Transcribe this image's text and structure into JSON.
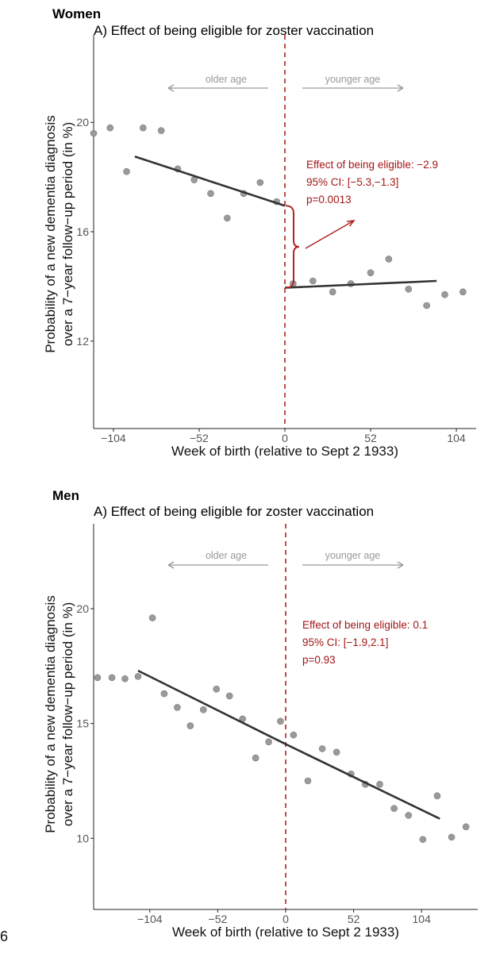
{
  "accent_color": "#b22222",
  "point_color": "#9a9a9a",
  "line_color": "#333333",
  "page_number": "6",
  "chart_data": [
    {
      "type": "scatter",
      "group_label": "Women",
      "title": "A) Effect of being eligible for zoster vaccination",
      "xlabel": "Week of birth (relative to Sept 2 1933)",
      "ylabel_lines": [
        "Probability of a new dementia diagnosis",
        "over a 7−year follow−up period (in %)"
      ],
      "xlim": [
        -116,
        116
      ],
      "ylim": [
        8.8,
        23.2
      ],
      "x_ticks": [
        -104,
        -52,
        0,
        52,
        104
      ],
      "x_tick_labels": [
        "−104",
        "−52",
        "0",
        "52",
        "104"
      ],
      "y_ticks": [
        12,
        16,
        20
      ],
      "y_tick_labels": [
        "12",
        "16",
        "20"
      ],
      "cutoff_x": 0,
      "arrow_labels": {
        "left": "older age",
        "right": "younger age"
      },
      "points": [
        {
          "x": -116,
          "y": 19.6
        },
        {
          "x": -106,
          "y": 19.8
        },
        {
          "x": -96,
          "y": 18.2
        },
        {
          "x": -86,
          "y": 19.8
        },
        {
          "x": -75,
          "y": 19.7
        },
        {
          "x": -65,
          "y": 18.3
        },
        {
          "x": -55,
          "y": 17.9
        },
        {
          "x": -45,
          "y": 17.4
        },
        {
          "x": -35,
          "y": 16.5
        },
        {
          "x": -25,
          "y": 17.4
        },
        {
          "x": -15,
          "y": 17.8
        },
        {
          "x": -5,
          "y": 17.1
        },
        {
          "x": 5,
          "y": 14.1
        },
        {
          "x": 17,
          "y": 14.2
        },
        {
          "x": 29,
          "y": 13.8
        },
        {
          "x": 40,
          "y": 14.1
        },
        {
          "x": 52,
          "y": 14.5
        },
        {
          "x": 63,
          "y": 15.0
        },
        {
          "x": 75,
          "y": 13.9
        },
        {
          "x": 86,
          "y": 13.3
        },
        {
          "x": 97,
          "y": 13.7
        },
        {
          "x": 108,
          "y": 13.8
        }
      ],
      "fit_segments": [
        {
          "x": [
            -91,
            0
          ],
          "y": [
            18.75,
            16.95
          ]
        },
        {
          "x": [
            0,
            92
          ],
          "y": [
            13.95,
            14.2
          ]
        }
      ],
      "annotation_lines": [
        "Effect of being eligible: −2.9",
        "95% CI: [−5.3,−1.3]",
        "p=0.0013"
      ],
      "show_brace": true
    },
    {
      "type": "scatter",
      "group_label": "Men",
      "title": "A) Effect of being eligible for zoster vaccination",
      "xlabel": "Week of birth (relative to Sept 2 1933)",
      "ylabel_lines": [
        "Probability of a new dementia diagnosis",
        "over a 7−year follow−up period (in %)"
      ],
      "xlim": [
        -147,
        147
      ],
      "ylim": [
        6.9,
        23.7
      ],
      "x_ticks": [
        -104,
        -52,
        0,
        52,
        104
      ],
      "x_tick_labels": [
        "−104",
        "−52",
        "0",
        "52",
        "104"
      ],
      "y_ticks": [
        10,
        15,
        20
      ],
      "y_tick_labels": [
        "10",
        "15",
        "20"
      ],
      "cutoff_x": 0,
      "arrow_labels": {
        "left": "older age",
        "right": "younger age"
      },
      "points": [
        {
          "x": -144,
          "y": 17.0
        },
        {
          "x": -133,
          "y": 17.0
        },
        {
          "x": -123,
          "y": 16.95
        },
        {
          "x": -113,
          "y": 17.05
        },
        {
          "x": -102,
          "y": 19.6
        },
        {
          "x": -93,
          "y": 16.3
        },
        {
          "x": -83,
          "y": 15.7
        },
        {
          "x": -73,
          "y": 14.9
        },
        {
          "x": -63,
          "y": 15.6
        },
        {
          "x": -53,
          "y": 16.5
        },
        {
          "x": -43,
          "y": 16.2
        },
        {
          "x": -33,
          "y": 15.2
        },
        {
          "x": -23,
          "y": 13.5
        },
        {
          "x": -13,
          "y": 14.2
        },
        {
          "x": -4,
          "y": 15.1
        },
        {
          "x": 6,
          "y": 14.5
        },
        {
          "x": 17,
          "y": 12.5
        },
        {
          "x": 28,
          "y": 13.9
        },
        {
          "x": 39,
          "y": 13.75
        },
        {
          "x": 50,
          "y": 12.8
        },
        {
          "x": 61,
          "y": 12.35
        },
        {
          "x": 72,
          "y": 12.35
        },
        {
          "x": 83,
          "y": 11.3
        },
        {
          "x": 94,
          "y": 11.0
        },
        {
          "x": 105,
          "y": 9.95
        },
        {
          "x": 116,
          "y": 11.85
        },
        {
          "x": 127,
          "y": 10.05
        },
        {
          "x": 138,
          "y": 10.5
        }
      ],
      "fit_segments": [
        {
          "x": [
            -113,
            0
          ],
          "y": [
            17.3,
            14.1
          ]
        },
        {
          "x": [
            0,
            118
          ],
          "y": [
            14.1,
            10.85
          ]
        }
      ],
      "annotation_lines": [
        "Effect of being eligible: 0.1",
        "95% CI: [−1.9,2.1]",
        "p=0.93"
      ],
      "show_brace": false
    }
  ]
}
